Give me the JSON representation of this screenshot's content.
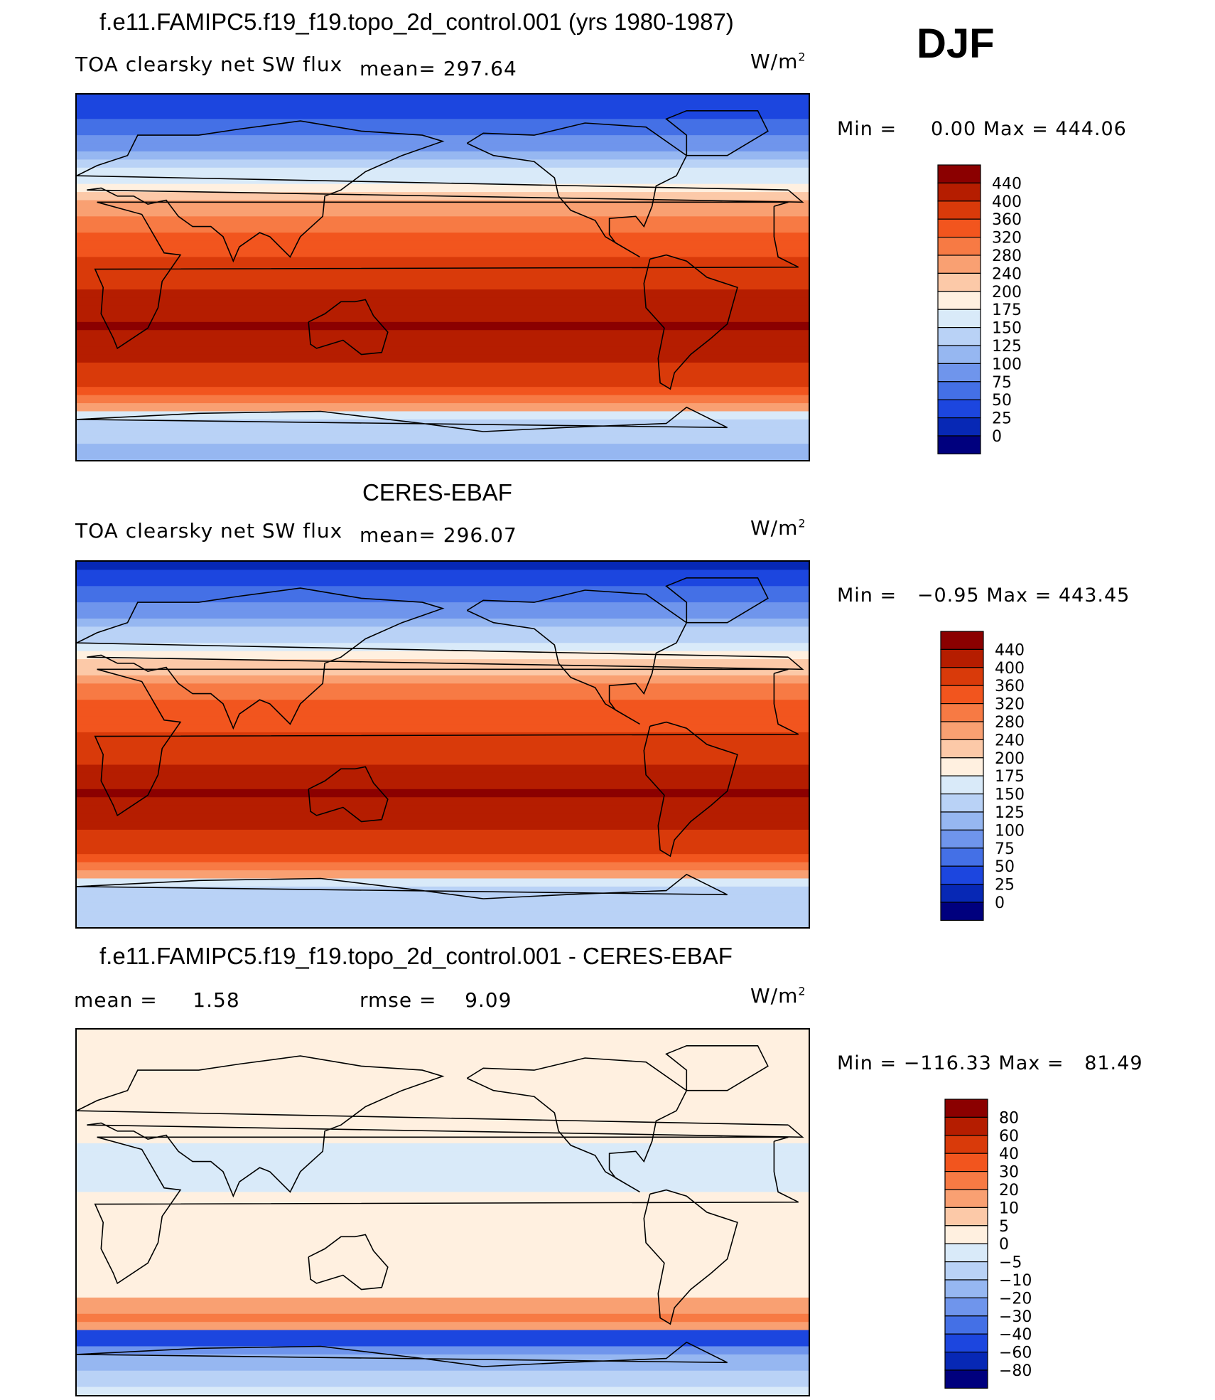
{
  "season": "DJF",
  "units_label": "W/m",
  "units_exp": "2",
  "chart_data": [
    {
      "type": "heatmap",
      "title": "f.e11.FAMIPC5.f19_f19.topo_2d_control.001 (yrs 1980-1987)",
      "variable": "TOA clearsky net SW flux",
      "stat_left": "mean=",
      "stat_left_value": "297.64",
      "min_label": "Min =",
      "min_value": "0.00",
      "max_label": "Max =",
      "max_value": "444.06",
      "colorbar_levels": [
        "440",
        "400",
        "360",
        "320",
        "280",
        "240",
        "200",
        "175",
        "150",
        "125",
        "100",
        "75",
        "50",
        "25",
        "0"
      ],
      "colorbar_colors": [
        "#8b0000",
        "#b51d00",
        "#d93a0a",
        "#f2551e",
        "#f77a44",
        "#f9a072",
        "#fcc9a8",
        "#fff0e0",
        "#d9eaf9",
        "#b9d2f6",
        "#96b7f1",
        "#6f95ec",
        "#4470e6",
        "#1c46df",
        "#0728b5",
        "#00007e"
      ],
      "lat_bands": [
        {
          "lat": 90,
          "value": 20
        },
        {
          "lat": 75,
          "value": 60
        },
        {
          "lat": 60,
          "value": 110
        },
        {
          "lat": 50,
          "value": 160
        },
        {
          "lat": 40,
          "value": 215
        },
        {
          "lat": 30,
          "value": 285
        },
        {
          "lat": 15,
          "value": 345
        },
        {
          "lat": 0,
          "value": 385
        },
        {
          "lat": -15,
          "value": 420
        },
        {
          "lat": -25,
          "value": 445
        },
        {
          "lat": -40,
          "value": 400
        },
        {
          "lat": -55,
          "value": 350
        },
        {
          "lat": -62,
          "value": 300
        },
        {
          "lat": -70,
          "value": 130
        },
        {
          "lat": -90,
          "value": 120
        }
      ]
    },
    {
      "type": "heatmap",
      "title": "CERES-EBAF",
      "variable": "TOA clearsky net SW flux",
      "stat_left": "mean=",
      "stat_left_value": "296.07",
      "min_label": "Min =",
      "min_value": "−0.95",
      "max_label": "Max =",
      "max_value": "443.45",
      "colorbar_levels": [
        "440",
        "400",
        "360",
        "320",
        "280",
        "240",
        "200",
        "175",
        "150",
        "125",
        "100",
        "75",
        "50",
        "25",
        "0"
      ],
      "colorbar_colors": [
        "#8b0000",
        "#b51d00",
        "#d93a0a",
        "#f2551e",
        "#f77a44",
        "#f9a072",
        "#fcc9a8",
        "#fff0e0",
        "#d9eaf9",
        "#b9d2f6",
        "#96b7f1",
        "#6f95ec",
        "#4470e6",
        "#1c46df",
        "#0728b5",
        "#00007e"
      ],
      "lat_bands": [
        {
          "lat": 90,
          "value": 15
        },
        {
          "lat": 75,
          "value": 55
        },
        {
          "lat": 60,
          "value": 105
        },
        {
          "lat": 50,
          "value": 155
        },
        {
          "lat": 40,
          "value": 210
        },
        {
          "lat": 30,
          "value": 280
        },
        {
          "lat": 15,
          "value": 340
        },
        {
          "lat": 0,
          "value": 380
        },
        {
          "lat": -15,
          "value": 415
        },
        {
          "lat": -25,
          "value": 445
        },
        {
          "lat": -40,
          "value": 400
        },
        {
          "lat": -55,
          "value": 350
        },
        {
          "lat": -62,
          "value": 290
        },
        {
          "lat": -70,
          "value": 135
        },
        {
          "lat": -90,
          "value": 130
        }
      ]
    },
    {
      "type": "heatmap",
      "title": "f.e11.FAMIPC5.f19_f19.topo_2d_control.001 - CERES-EBAF",
      "stat_left": "mean =",
      "stat_left_value": "1.58",
      "stat_right": "rmse =",
      "stat_right_value": "9.09",
      "min_label": "Min =",
      "min_value": "−116.33",
      "max_label": "Max =",
      "max_value": "81.49",
      "colorbar_levels": [
        "80",
        "60",
        "40",
        "30",
        "20",
        "10",
        "5",
        "0",
        "−5",
        "−10",
        "−20",
        "−30",
        "−40",
        "−60",
        "−80"
      ],
      "colorbar_colors": [
        "#8b0000",
        "#b51d00",
        "#d93a0a",
        "#f2551e",
        "#f77a44",
        "#f9a072",
        "#fcc9a8",
        "#fff0e0",
        "#d9eaf9",
        "#b9d2f6",
        "#96b7f1",
        "#6f95ec",
        "#4470e6",
        "#1c46df",
        "#0728b5",
        "#00007e"
      ],
      "lat_bands": [
        {
          "lat": 90,
          "value": 2
        },
        {
          "lat": 60,
          "value": 3
        },
        {
          "lat": 40,
          "value": 1
        },
        {
          "lat": 20,
          "value": -2
        },
        {
          "lat": 0,
          "value": 2
        },
        {
          "lat": -20,
          "value": 2
        },
        {
          "lat": -40,
          "value": 3
        },
        {
          "lat": -55,
          "value": 30
        },
        {
          "lat": -60,
          "value": -60
        },
        {
          "lat": -70,
          "value": -20
        },
        {
          "lat": -90,
          "value": 1
        }
      ]
    }
  ]
}
